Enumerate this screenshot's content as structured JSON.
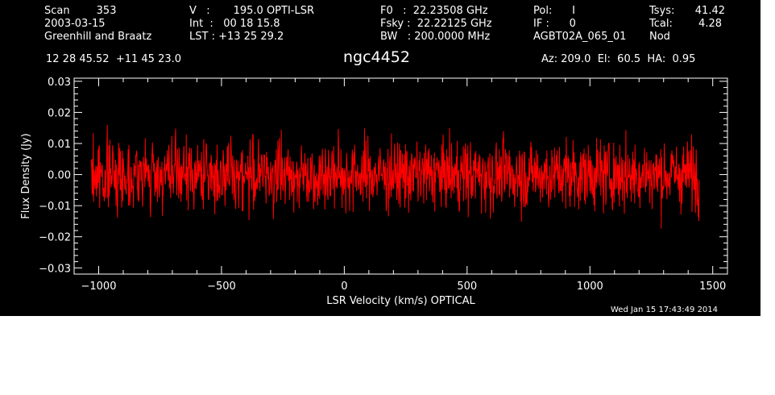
{
  "header": {
    "col1": [
      "Scan        353",
      "2003-03-15",
      "Greenhill and Braatz"
    ],
    "col2": [
      "V   :       195.0 OPTI-LSR",
      "Int  :   00 18 15.8",
      "LST : +13 25 29.2"
    ],
    "col3": [
      "F0   :  22.23508 GHz",
      "Fsky :  22.22125 GHz",
      "BW   : 200.0000 MHz"
    ],
    "col4": [
      "Pol:      I",
      "IF :      0",
      "AGBT02A_065_01"
    ],
    "col5_labels": [
      "Tsys:",
      "Tcal:",
      "Nod"
    ],
    "col5_values": [
      "41.42",
      "4.28",
      ""
    ],
    "coords": "12 28 45.52  +11 45 23.0",
    "source": "ngc4452",
    "pointing": "Az: 209.0  El:  60.5  HA:  0.95",
    "timestamp": "Wed Jan 15 17:43:49 2014"
  },
  "colors": {
    "background": "#000000",
    "axes": "#ffffff",
    "series": "#ff0000"
  },
  "chart_data": {
    "type": "line",
    "title": "ngc4452",
    "xlabel": "LSR Velocity (km/s) OPTICAL",
    "ylabel": "Flux Density (Jy)",
    "xlim": [
      -1100,
      1560
    ],
    "ylim": [
      -0.032,
      0.031
    ],
    "xticks": [
      -1000,
      -500,
      0,
      500,
      1000,
      1500
    ],
    "xtick_labels": [
      "−1000",
      "−500",
      "0",
      "500",
      "1000",
      "1500"
    ],
    "yticks": [
      -0.03,
      -0.02,
      -0.01,
      0.0,
      0.01,
      0.02,
      0.03
    ],
    "ytick_labels": [
      "−0.03",
      "−0.02",
      "−0.01",
      "0.00",
      "0.01",
      "0.02",
      "0.03"
    ],
    "series": [
      {
        "x_start": -1030,
        "x_end": 1445,
        "baseline": 0.0,
        "noise_rms": 0.0055,
        "max": 0.022,
        "min": -0.022,
        "color": "#ff0000"
      }
    ]
  }
}
